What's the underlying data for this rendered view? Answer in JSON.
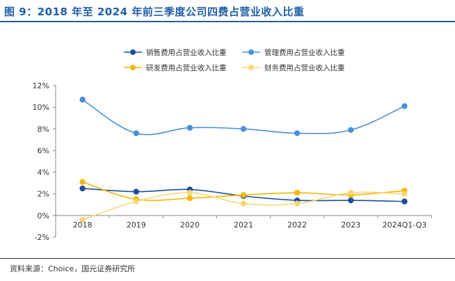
{
  "figure": {
    "title": "图 9：2018 年至 2024 年前三季度公司四费占营业收入比重",
    "source": "资料来源：Choice，国元证券研究所"
  },
  "chart_data": {
    "type": "line",
    "categories": [
      "2018",
      "2019",
      "2020",
      "2021",
      "2022",
      "2023",
      "2024Q1-Q3"
    ],
    "ylim": [
      -2,
      12
    ],
    "yticks": [
      "-2%",
      "0%",
      "2%",
      "4%",
      "6%",
      "8%",
      "10%",
      "12%"
    ],
    "grid": false,
    "legend_position": "top",
    "series": [
      {
        "name": "销售费用占营业收入比重",
        "color": "#1f4e99",
        "values": [
          2.5,
          2.2,
          2.4,
          1.8,
          1.4,
          1.4,
          1.3
        ]
      },
      {
        "name": "管理费用占营业收入比重",
        "color": "#4a90d9",
        "values": [
          10.7,
          7.6,
          8.1,
          8.0,
          7.6,
          7.9,
          10.1
        ]
      },
      {
        "name": "研发费用占营业收入比重",
        "color": "#f2b705",
        "values": [
          3.1,
          1.5,
          1.6,
          1.9,
          2.1,
          1.9,
          2.3
        ]
      },
      {
        "name": "财务费用占营业收入比重",
        "color": "#f7d774",
        "values": [
          -0.4,
          1.3,
          2.1,
          1.1,
          1.1,
          2.1,
          2.0
        ]
      }
    ]
  }
}
